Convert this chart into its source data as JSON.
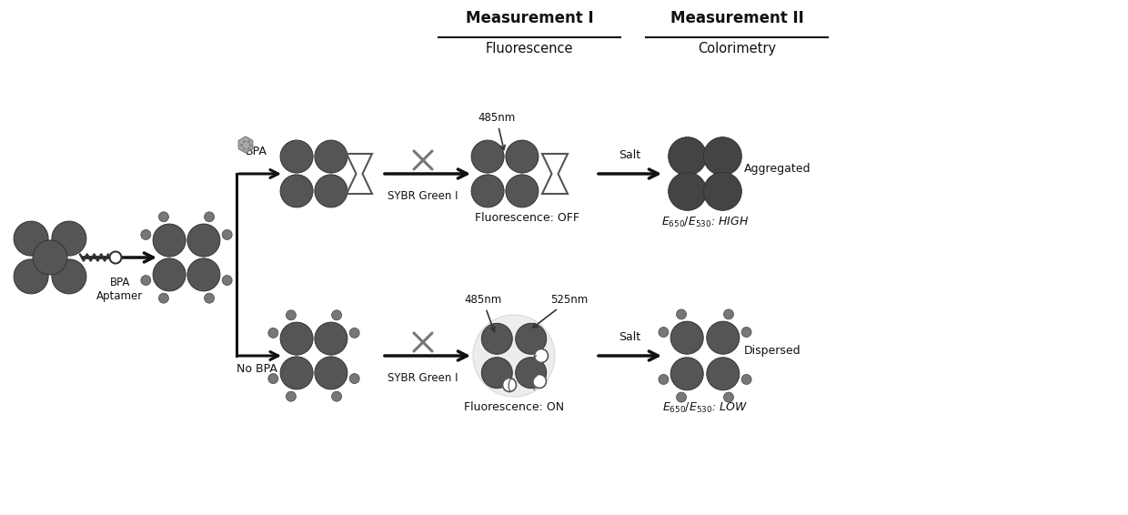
{
  "bg_color": "#ffffff",
  "fig_width": 12.4,
  "fig_height": 5.66,
  "dpi": 100,
  "sphere_color": "#555555",
  "sphere_edge": "#333333",
  "aptamer_bump_color": "#777777",
  "aptamer_bump_edge": "#444444",
  "arrow_color": "#111111",
  "text_color": "#111111",
  "cross_color": "#777777",
  "hourglass_color": "#555555",
  "glow_color": "#cccccc",
  "bpa_molecule_color": "#aaaaaa",
  "meas1_title": "Measurement I",
  "meas1_sub": "Fluorescence",
  "meas2_title": "Measurement II",
  "meas2_sub": "Colorimetry",
  "label_bpa": "BPA",
  "label_aptamer": "BPA\nAptamer",
  "label_nobpa": "No BPA",
  "label_sybr": "SYBR Green I",
  "label_fluo_off": "Fluorescence: OFF",
  "label_fluo_on": "Fluorescence: ON",
  "label_485nm_1": "485nm",
  "label_485nm_2": "485nm",
  "label_525nm": "525nm",
  "label_salt1": "Salt",
  "label_salt2": "Salt",
  "label_aggregated": "Aggregated",
  "label_dispersed": "Dispersed",
  "label_high": "$E_{650}/E_{530}$: HIGH",
  "label_low": "$E_{650}/E_{530}$: LOW",
  "xlim": [
    0,
    12.4
  ],
  "ylim": [
    0,
    5.66
  ]
}
